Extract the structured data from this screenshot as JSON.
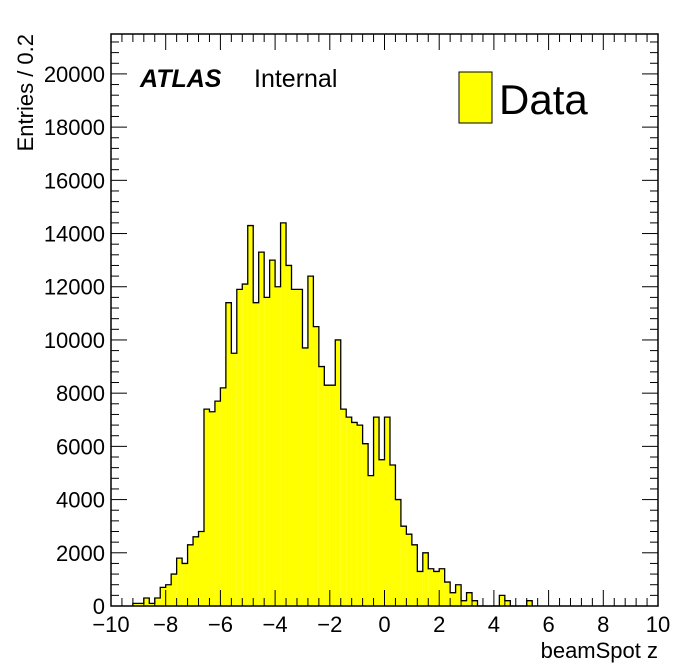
{
  "chart_data": {
    "type": "histogram",
    "xlabel": "beamSpot z",
    "ylabel": "Entries / 0.2",
    "xlim": [
      -10,
      10
    ],
    "ylim": [
      0,
      21500
    ],
    "bin_width": 0.2,
    "x_ticks": [
      -10,
      -8,
      -6,
      -4,
      -2,
      0,
      2,
      4,
      6,
      8,
      10
    ],
    "x_tick_labels": [
      "−10",
      "−8",
      "−6",
      "−4",
      "−2",
      "0",
      "2",
      "4",
      "6",
      "8",
      "10"
    ],
    "y_ticks": [
      0,
      2000,
      4000,
      6000,
      8000,
      10000,
      12000,
      14000,
      16000,
      18000,
      20000
    ],
    "y_tick_labels": [
      "0",
      "2000",
      "4000",
      "6000",
      "8000",
      "10000",
      "12000",
      "14000",
      "16000",
      "18000",
      "20000"
    ],
    "bin_edges_start": -9.2,
    "values": [
      100,
      100,
      300,
      100,
      300,
      700,
      800,
      1200,
      1800,
      1600,
      2300,
      2600,
      2800,
      7400,
      7300,
      7700,
      8200,
      11400,
      9500,
      11900,
      12100,
      14300,
      11400,
      13300,
      11600,
      13000,
      12000,
      14400,
      12800,
      11900,
      11900,
      9700,
      12400,
      10500,
      9000,
      8300,
      8300,
      10000,
      7400,
      7100,
      6900,
      6800,
      6100,
      4900,
      7100,
      5500,
      7100,
      5300,
      4000,
      3000,
      2700,
      2300,
      1300,
      2000,
      1400,
      1300,
      1400,
      900,
      500,
      800,
      200,
      500,
      200,
      0,
      0,
      0,
      0,
      400,
      200,
      0,
      0,
      0,
      200
    ],
    "series": [
      {
        "name": "Data",
        "color": "#ffff00",
        "edge_color": "#000000"
      }
    ],
    "annotations": {
      "experiment": "ATLAS",
      "status": "Internal"
    },
    "legend_position": "top-right",
    "grid": false
  }
}
